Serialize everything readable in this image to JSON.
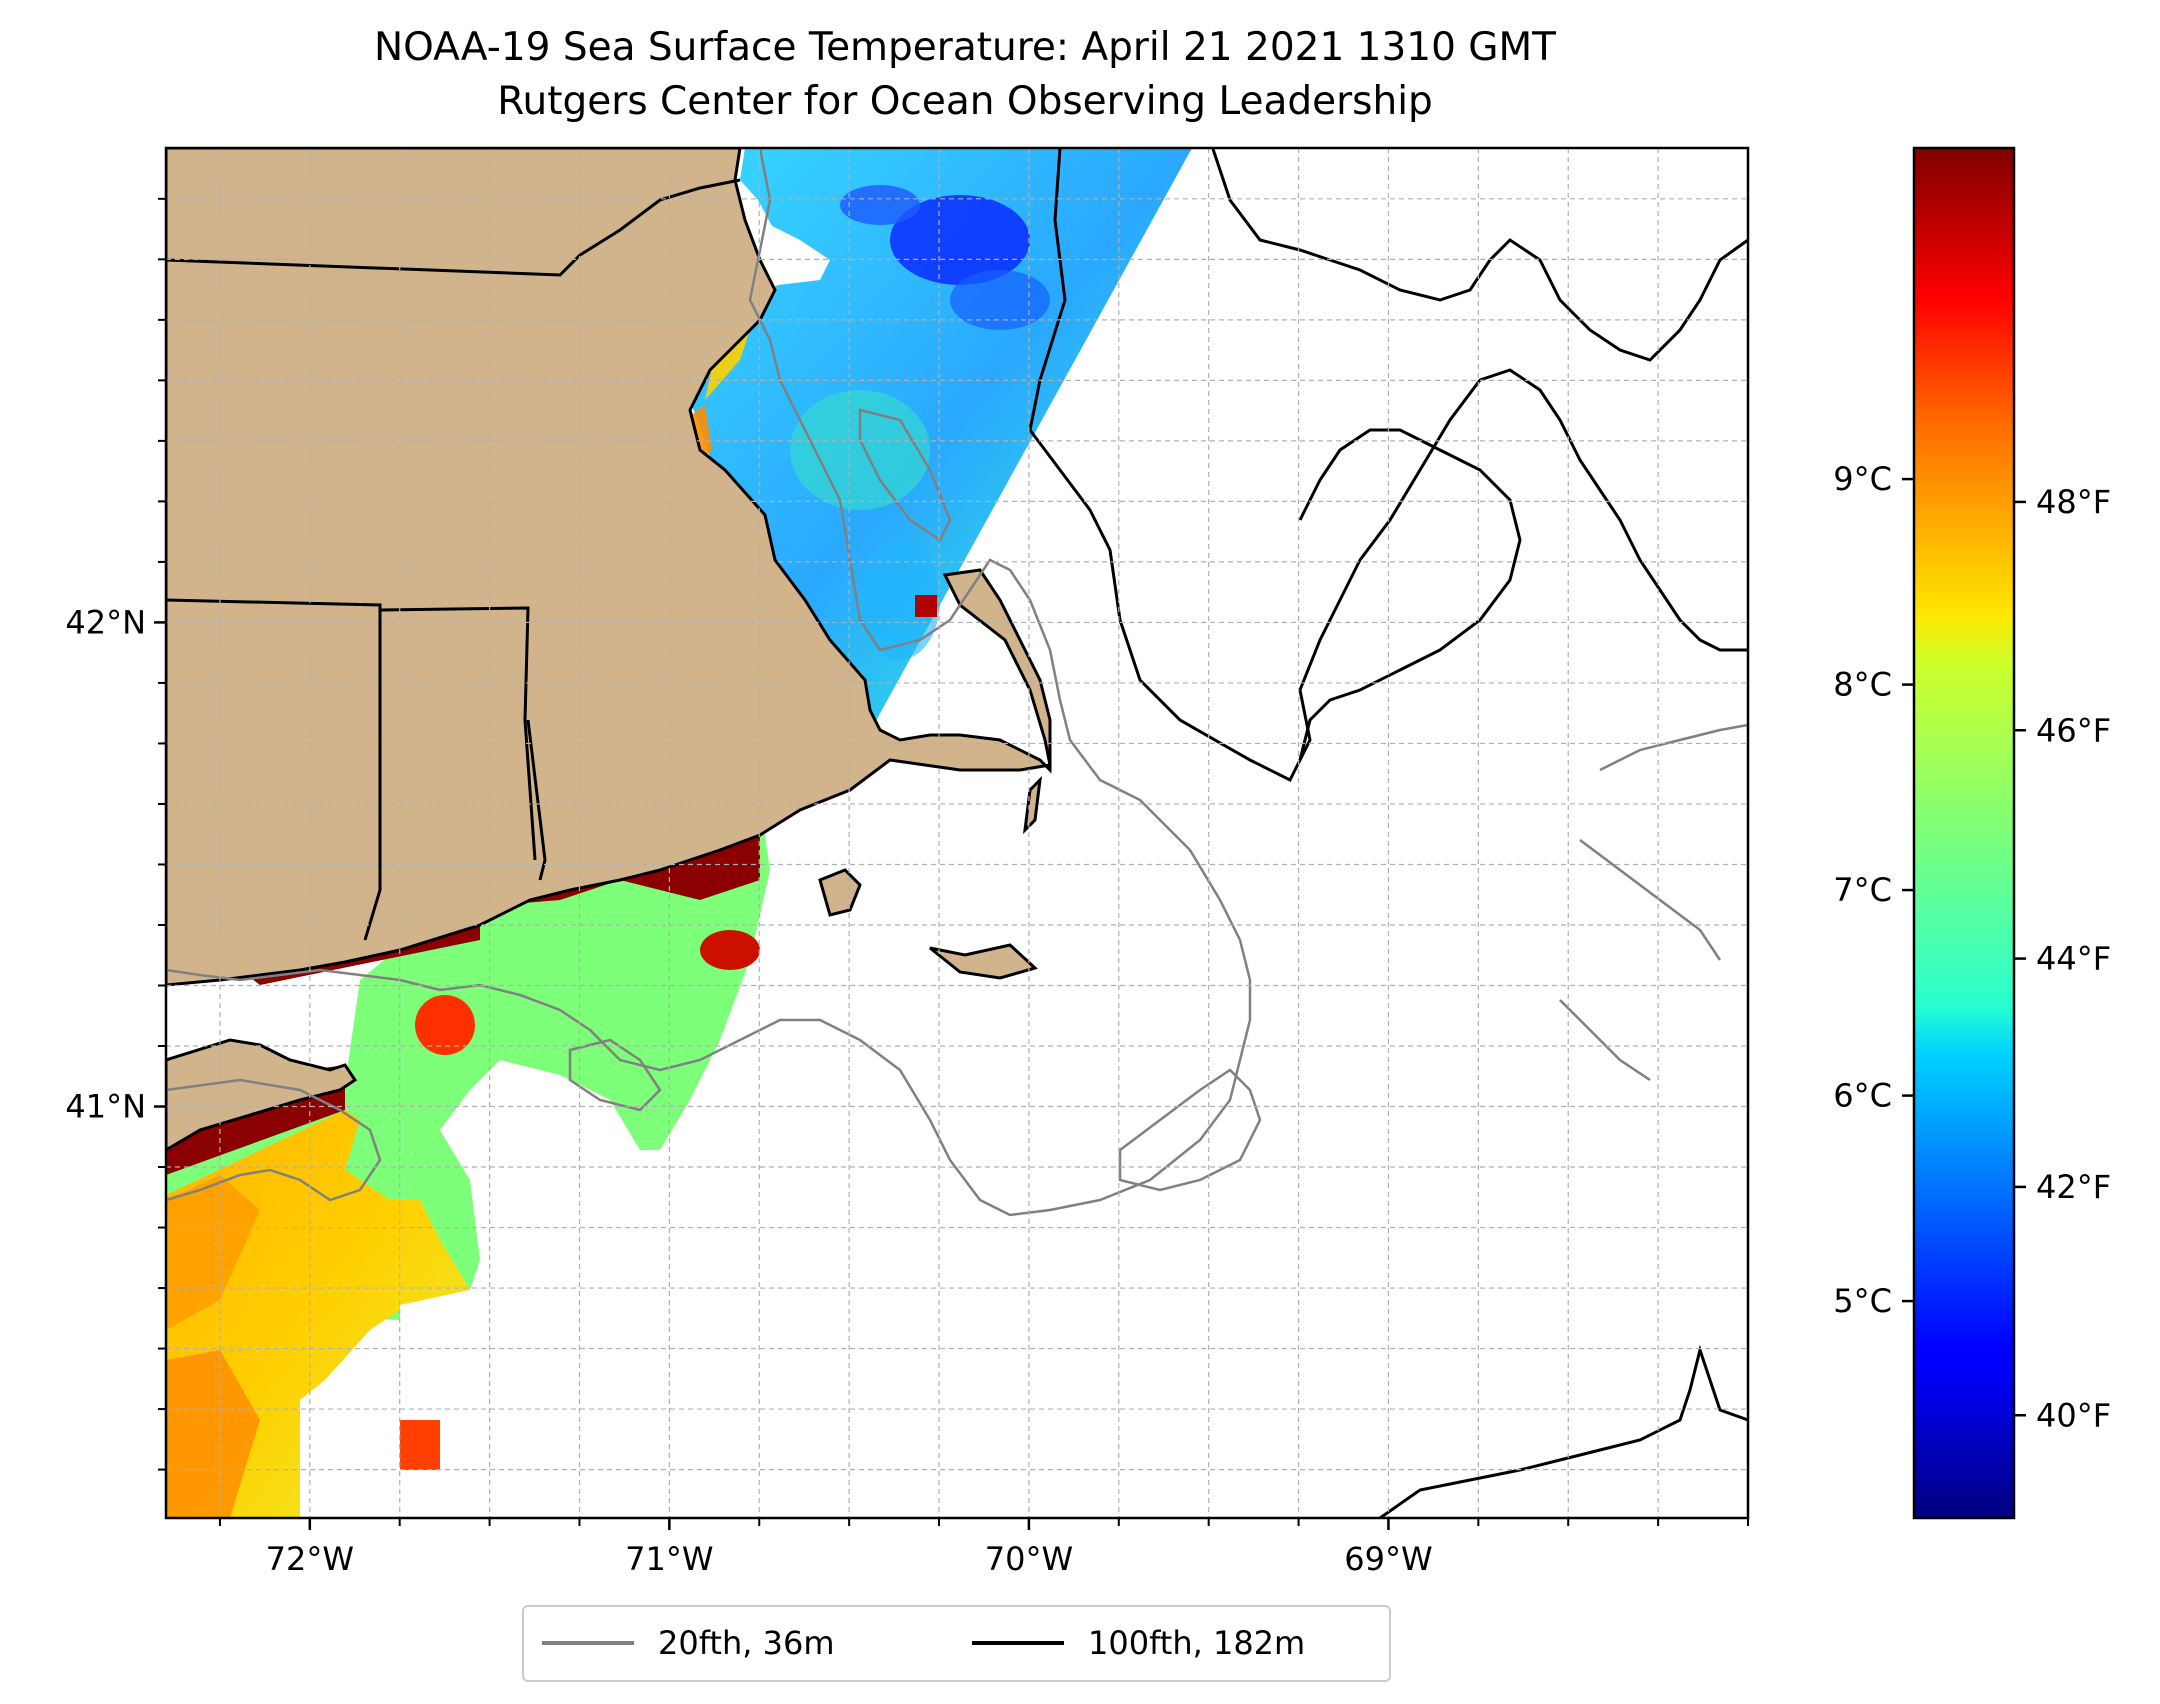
{
  "title": {
    "line1": "NOAA-19 Sea Surface Temperature: April 21 2021 1310 GMT",
    "line2": "Rutgers Center for Ocean Observing Leadership"
  },
  "map": {
    "extent": {
      "lon_min": -72.4,
      "lon_max": -68.0,
      "lat_min": 40.15,
      "lat_max": 42.98
    },
    "land_color": "#d2b48c",
    "grid": "on",
    "x_ticks": [
      {
        "lon": -72,
        "label": "72°W"
      },
      {
        "lon": -71,
        "label": "71°W"
      },
      {
        "lon": -70,
        "label": "70°W"
      },
      {
        "lon": -69,
        "label": "69°W"
      }
    ],
    "y_ticks": [
      {
        "lat": 42,
        "label": "42°N"
      },
      {
        "lat": 41,
        "label": "41°N"
      }
    ]
  },
  "colorbar": {
    "colormap": "jet",
    "celsius_ticks": [
      {
        "value": 9,
        "label": "9°C"
      },
      {
        "value": 8,
        "label": "8°C"
      },
      {
        "value": 7,
        "label": "7°C"
      },
      {
        "value": 6,
        "label": "6°C"
      },
      {
        "value": 5,
        "label": "5°C"
      }
    ],
    "fahrenheit_ticks": [
      {
        "value": 48,
        "label": "48°F"
      },
      {
        "value": 46,
        "label": "46°F"
      },
      {
        "value": 44,
        "label": "44°F"
      },
      {
        "value": 42,
        "label": "42°F"
      },
      {
        "value": 40,
        "label": "40°F"
      }
    ],
    "range_f": [
      39.1,
      51.1
    ]
  },
  "legend": {
    "items": [
      {
        "label": "20fth, 36m",
        "color": "#808080"
      },
      {
        "label": "100fth, 182m",
        "color": "#000000"
      }
    ]
  }
}
